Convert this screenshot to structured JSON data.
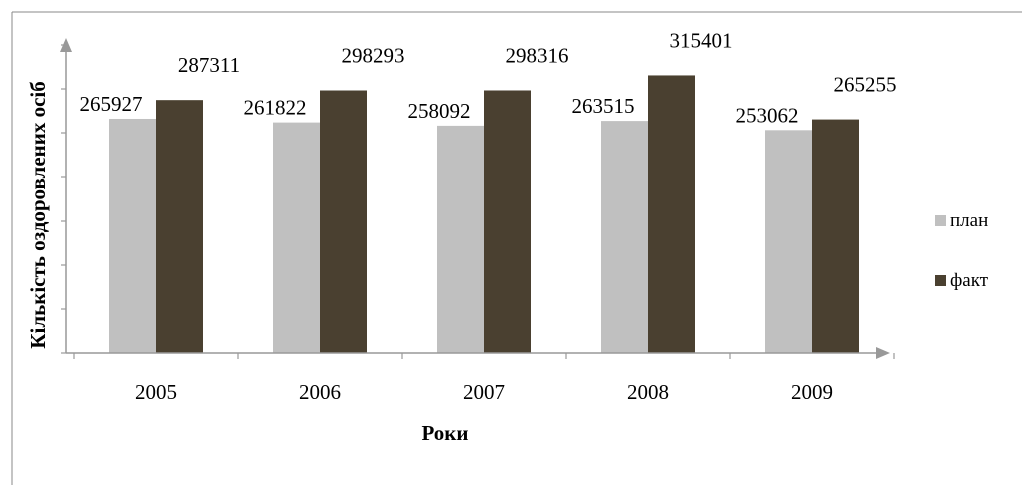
{
  "chart_data": {
    "type": "bar",
    "title": "",
    "xlabel": "Роки",
    "ylabel": "Кількість оздоровлених осіб",
    "categories": [
      "2005",
      "2006",
      "2007",
      "2008",
      "2009"
    ],
    "series": [
      {
        "name": "план",
        "values": [
          265927,
          261822,
          258092,
          263515,
          253062
        ],
        "labels": [
          "265927",
          "261822",
          "258092",
          "263515",
          "253062"
        ],
        "color": "#c0c0c0"
      },
      {
        "name": "факт",
        "values": [
          287311,
          298293,
          298316,
          315401,
          265255
        ],
        "labels": [
          "287311",
          "298293",
          "298316",
          "315401",
          "265255"
        ],
        "color": "#4a4030"
      }
    ],
    "ylim": [
      0,
      350000
    ],
    "y_tick_step": 50000,
    "y_tick_labels_visible": false,
    "grid": false,
    "legend": "right"
  },
  "colors": {
    "frame": "#888888",
    "axis": "#999999"
  }
}
